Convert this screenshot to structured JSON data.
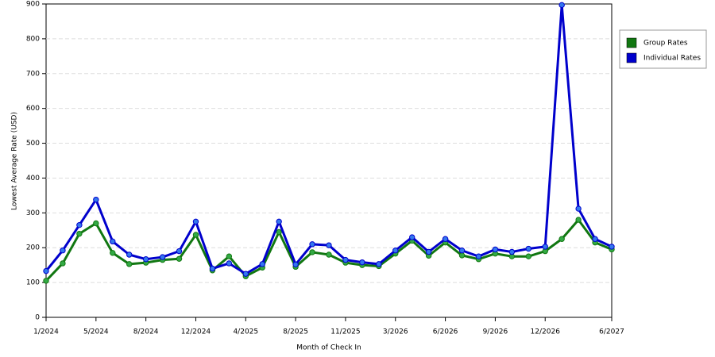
{
  "chart_data": {
    "type": "line",
    "x_label": "Month of Check In",
    "y_label": "Lowest Average Rate (USD)",
    "categories": [
      "1/2024",
      null,
      null,
      "5/2024",
      null,
      null,
      "8/2024",
      null,
      null,
      "12/2024",
      null,
      null,
      "4/2025",
      null,
      null,
      "8/2025",
      null,
      null,
      "11/2025",
      null,
      null,
      "3/2026",
      null,
      null,
      "6/2026",
      null,
      null,
      "9/2026",
      null,
      null,
      "12/2026",
      null,
      null,
      null,
      "6/2027"
    ],
    "series": [
      {
        "name": "Group Rates",
        "color": "#117711",
        "marker": "#33aa44",
        "values": [
          105,
          155,
          240,
          270,
          185,
          153,
          157,
          165,
          168,
          237,
          135,
          175,
          118,
          143,
          245,
          145,
          187,
          180,
          157,
          150,
          147,
          183,
          220,
          177,
          215,
          178,
          167,
          183,
          175,
          175,
          190,
          225,
          280,
          215,
          195
        ]
      },
      {
        "name": "Individual Rates",
        "color": "#0000cc",
        "marker": "#3377ee",
        "values": [
          133,
          192,
          265,
          338,
          218,
          180,
          167,
          173,
          190,
          275,
          140,
          155,
          125,
          153,
          275,
          152,
          210,
          207,
          165,
          158,
          153,
          192,
          230,
          188,
          225,
          192,
          175,
          195,
          188,
          197,
          203,
          897,
          312,
          225,
          203
        ]
      }
    ],
    "ylim": [
      0,
      900
    ],
    "yticks": [
      0,
      100,
      200,
      300,
      400,
      500,
      600,
      700,
      800,
      900
    ],
    "grid": true,
    "legend": "right"
  }
}
